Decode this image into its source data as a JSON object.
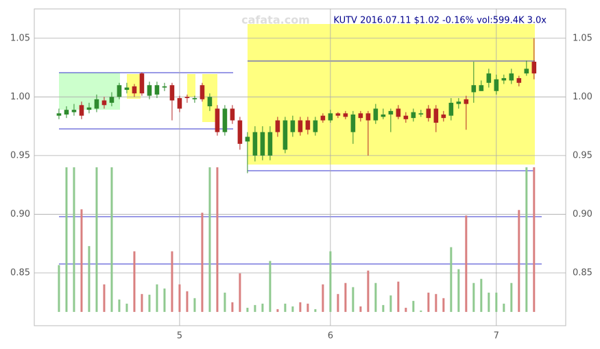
{
  "chart_data": {
    "type": "candlestick",
    "title": "KUTV 2016.07.11 $1.02 -0.16% vol:599.4K 3.0x",
    "watermark": "cafata.com",
    "x": [
      0,
      1,
      2,
      3,
      4,
      5,
      6,
      7,
      8,
      9,
      10,
      11,
      12,
      13,
      14,
      15,
      16,
      17,
      18,
      19,
      20,
      21,
      22,
      23,
      24,
      25,
      26,
      27,
      28,
      29,
      30,
      31,
      32,
      33,
      34,
      35,
      36,
      37,
      38,
      39,
      40,
      41,
      42,
      43,
      44,
      45,
      46,
      47,
      48,
      49,
      50,
      51,
      52,
      53,
      54,
      55,
      56,
      57,
      58,
      59,
      60,
      61,
      62,
      63
    ],
    "open": [
      0.984,
      0.985,
      0.987,
      0.993,
      0.989,
      0.99,
      0.997,
      0.995,
      1.0,
      1.006,
      1.009,
      1.02,
      1.001,
      1.002,
      1.008,
      1.01,
      0.999,
      1.0,
      0.998,
      1.01,
      0.992,
      0.99,
      0.97,
      0.99,
      0.98,
      0.962,
      0.95,
      0.95,
      0.95,
      0.98,
      0.955,
      0.97,
      0.98,
      0.98,
      0.97,
      0.984,
      0.98,
      0.986,
      0.986,
      0.97,
      0.986,
      0.986,
      0.98,
      0.983,
      0.985,
      0.99,
      0.984,
      0.982,
      0.985,
      0.99,
      0.99,
      0.985,
      0.984,
      0.994,
      0.998,
      1.004,
      1.005,
      1.012,
      1.005,
      1.014,
      1.014,
      1.016,
      1.02,
      1.03
    ],
    "high": [
      0.99,
      0.992,
      0.994,
      0.996,
      0.995,
      1.002,
      1.0,
      1.004,
      1.012,
      1.012,
      1.011,
      1.021,
      1.013,
      1.013,
      1.012,
      1.012,
      1.001,
      1.002,
      1.001,
      1.012,
      1.003,
      0.993,
      0.993,
      0.993,
      0.983,
      0.97,
      0.975,
      0.975,
      0.975,
      0.983,
      0.983,
      0.984,
      0.983,
      0.983,
      0.983,
      0.986,
      0.989,
      0.987,
      0.988,
      0.988,
      0.988,
      0.988,
      0.994,
      0.99,
      0.99,
      0.993,
      0.987,
      0.99,
      0.989,
      0.993,
      0.993,
      0.988,
      0.999,
      0.999,
      1.001,
      1.03,
      1.014,
      1.024,
      1.019,
      1.019,
      1.024,
      1.018,
      1.031,
      1.05
    ],
    "low": [
      0.981,
      0.982,
      0.984,
      0.981,
      0.986,
      0.987,
      0.99,
      0.992,
      0.998,
      1.003,
      1.0,
      1.001,
      0.998,
      0.999,
      1.005,
      0.98,
      0.987,
      0.995,
      0.995,
      0.996,
      0.988,
      0.967,
      0.967,
      0.977,
      0.955,
      0.935,
      0.945,
      0.946,
      0.946,
      0.966,
      0.952,
      0.966,
      0.967,
      0.968,
      0.967,
      0.978,
      0.978,
      0.982,
      0.981,
      0.96,
      0.979,
      0.95,
      0.977,
      0.981,
      0.97,
      0.981,
      0.978,
      0.979,
      0.983,
      0.979,
      0.97,
      0.979,
      0.98,
      0.99,
      0.972,
      0.995,
      1.005,
      1.008,
      1.002,
      1.011,
      1.011,
      1.009,
      1.018,
      1.015
    ],
    "close": [
      0.986,
      0.989,
      0.989,
      0.984,
      0.991,
      0.998,
      0.993,
      1.0,
      1.01,
      1.008,
      1.003,
      1.003,
      1.01,
      1.01,
      1.009,
      0.997,
      0.99,
      0.999,
      0.999,
      0.998,
      1.0,
      0.97,
      0.99,
      0.98,
      0.96,
      0.966,
      0.97,
      0.97,
      0.97,
      0.97,
      0.98,
      0.98,
      0.97,
      0.972,
      0.98,
      0.98,
      0.986,
      0.984,
      0.983,
      0.985,
      0.982,
      0.98,
      0.99,
      0.985,
      0.988,
      0.983,
      0.981,
      0.987,
      0.986,
      0.982,
      0.978,
      0.982,
      0.995,
      0.996,
      0.994,
      1.01,
      1.01,
      1.02,
      1.015,
      1.016,
      1.02,
      1.012,
      1.024,
      1.02
    ],
    "volume": [
      340,
      1050,
      1050,
      745,
      478,
      1050,
      200,
      1050,
      90,
      60,
      440,
      130,
      125,
      200,
      170,
      440,
      200,
      150,
      100,
      720,
      1050,
      1050,
      140,
      70,
      280,
      30,
      50,
      60,
      370,
      20,
      60,
      40,
      70,
      60,
      20,
      200,
      440,
      130,
      210,
      180,
      40,
      300,
      210,
      50,
      120,
      220,
      30,
      80,
      10,
      140,
      130,
      100,
      470,
      310,
      700,
      210,
      240,
      140,
      140,
      60,
      210,
      740,
      1050,
      1050
    ],
    "up_color": "#2e8b2e",
    "down_color": "#b22222",
    "volume_up_color": "#8fc98f",
    "volume_down_color": "#d98080",
    "xlim": [
      -3.27,
      67.2
    ],
    "xticks": [
      {
        "value": 16,
        "label": "5"
      },
      {
        "value": 36,
        "label": "6"
      },
      {
        "value": 58,
        "label": "7"
      }
    ],
    "ylim": [
      0.805,
      1.075
    ],
    "yticks": [
      0.85,
      0.9,
      0.95,
      1.0,
      1.05
    ],
    "yticklabels": [
      "0.85",
      "0.90",
      "0.95",
      "1.00",
      "1.05"
    ],
    "y2lim": [
      -100,
      2200
    ],
    "grid": true
  }
}
